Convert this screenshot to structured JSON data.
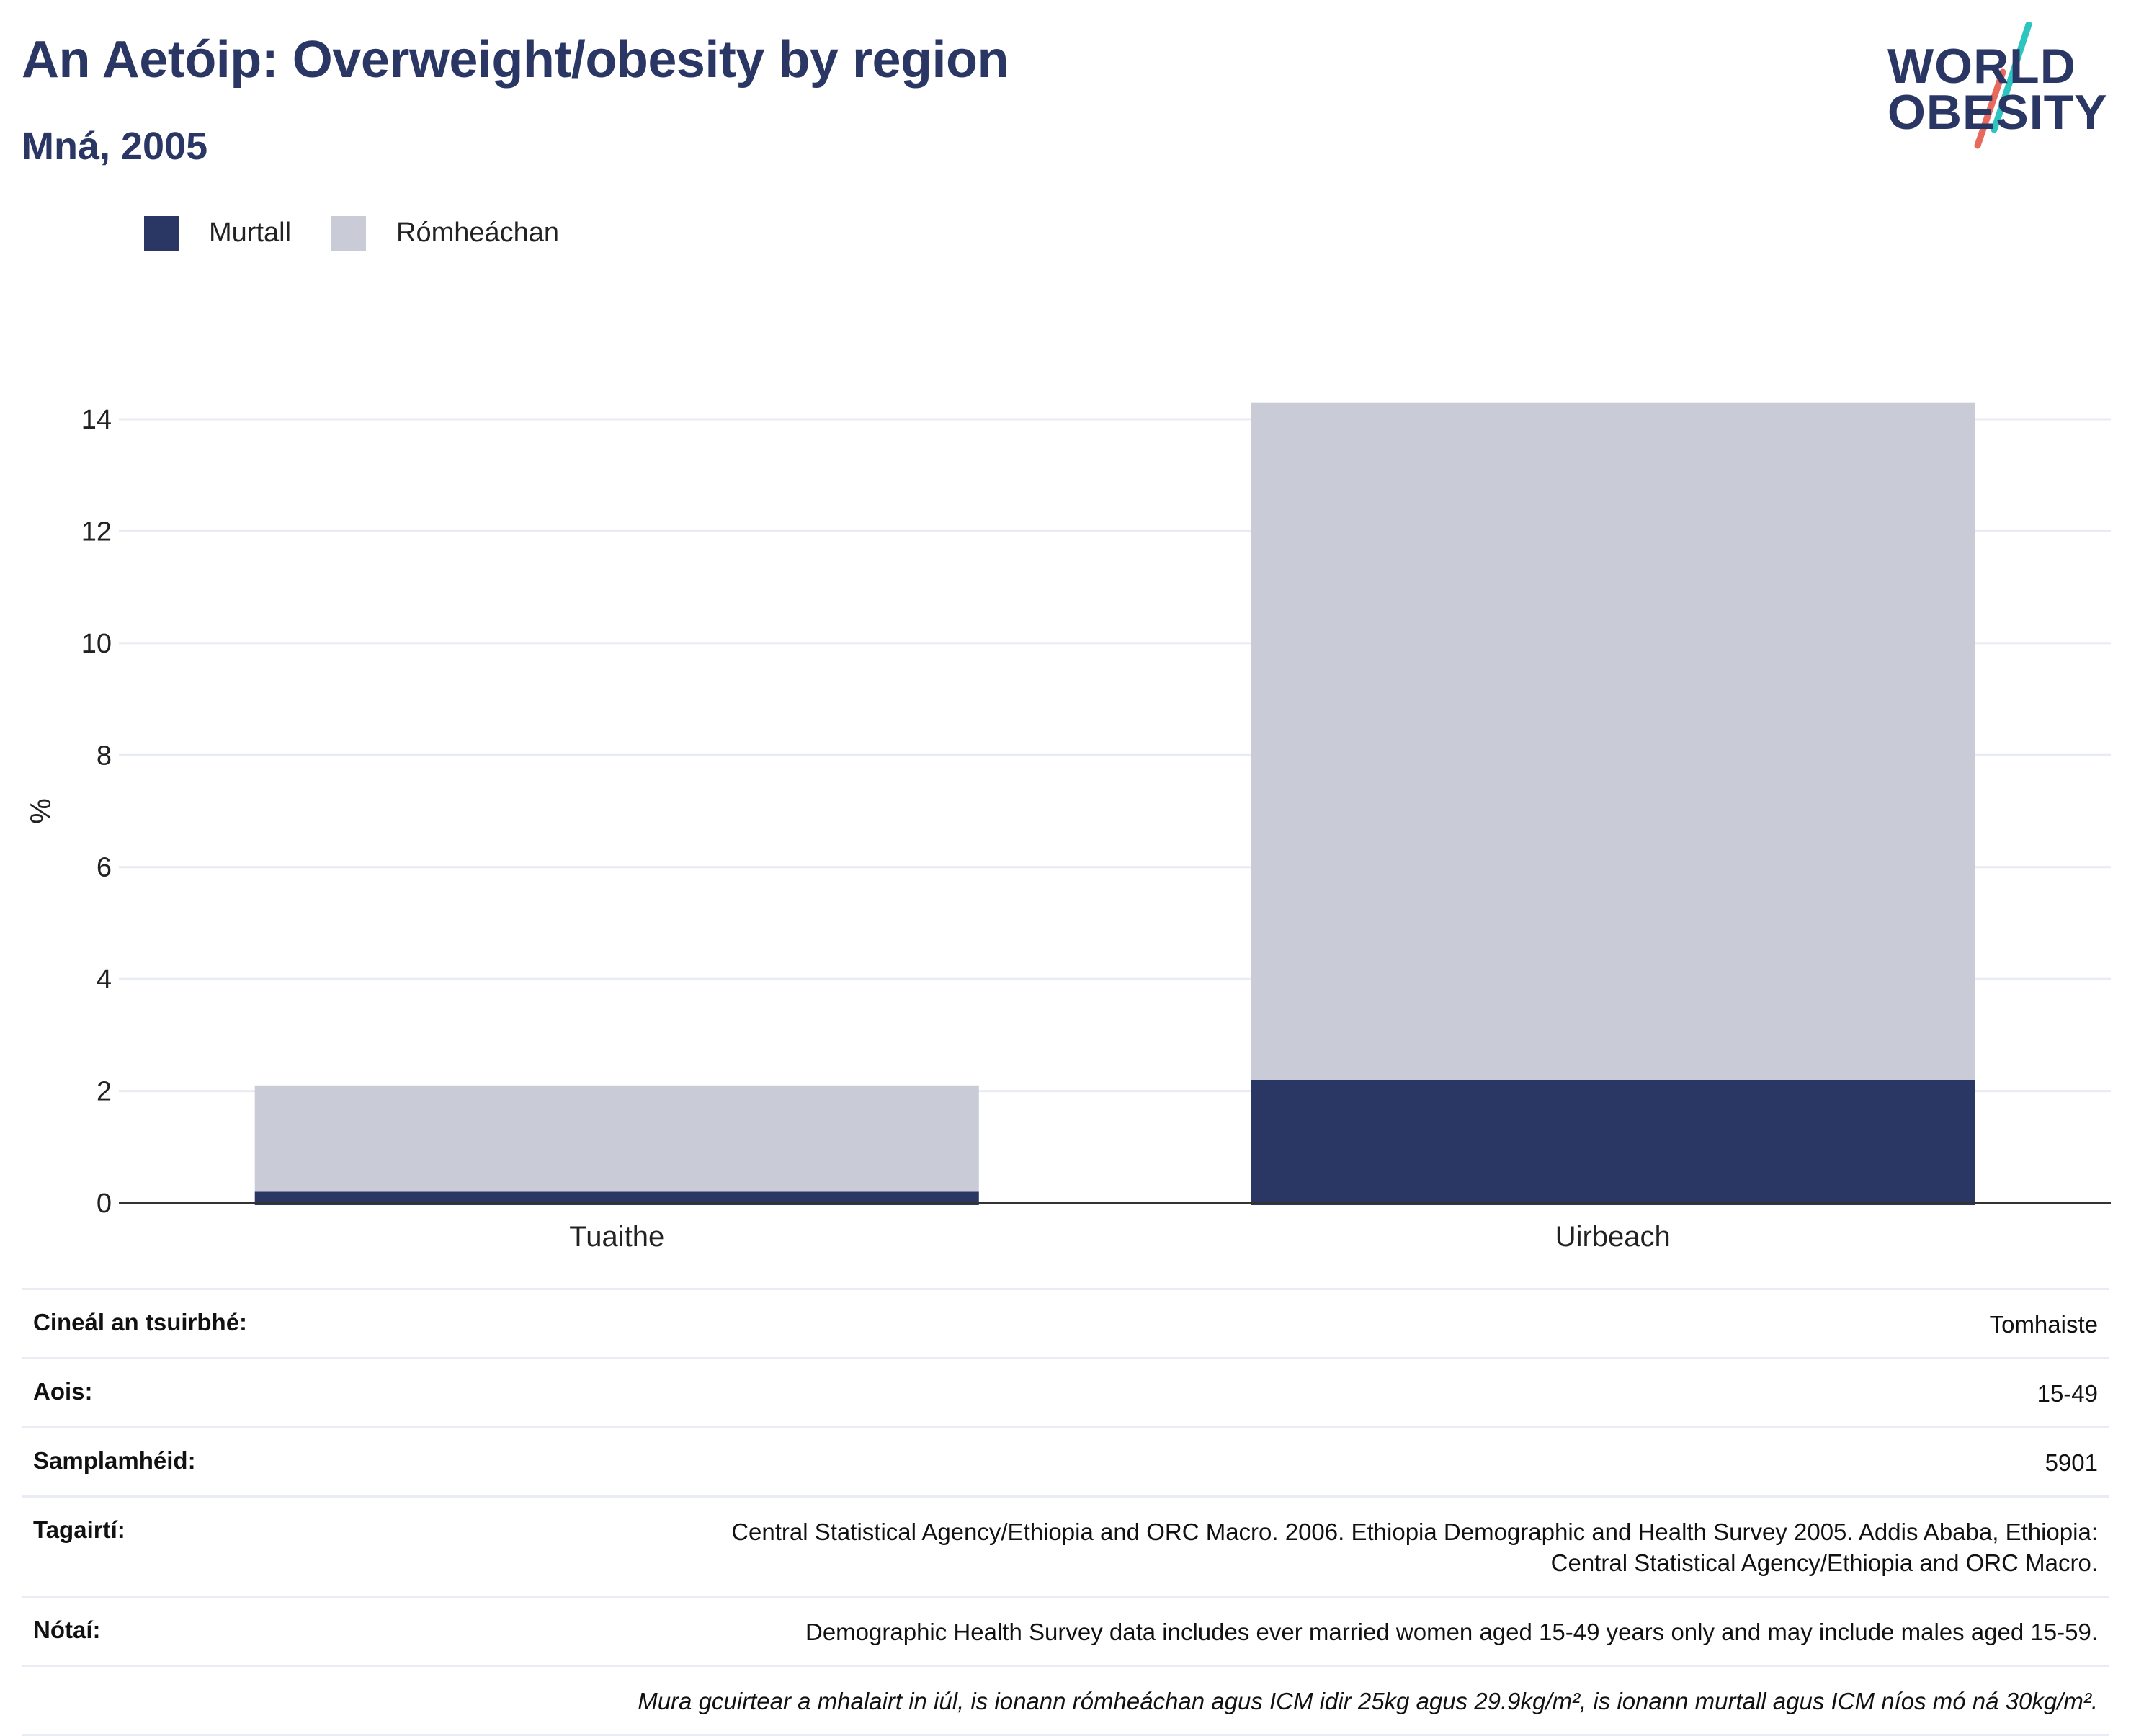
{
  "header": {
    "title": "An Aetóip: Overweight/obesity by region",
    "subtitle": "Mná, 2005"
  },
  "logo": {
    "line1": "WORLD",
    "line2": "OBESITY",
    "slash_colors": [
      "#2ec4c0",
      "#e86a5c"
    ]
  },
  "legend": [
    {
      "label": "Murtall",
      "color": "#2a3663"
    },
    {
      "label": "Rómheáchan",
      "color": "#c9ccd7"
    }
  ],
  "chart_data": {
    "type": "bar",
    "stacked": true,
    "categories": [
      "Tuaithe",
      "Uirbeach"
    ],
    "series": [
      {
        "name": "Murtall",
        "values": [
          0.2,
          2.2
        ],
        "color": "#2a3663"
      },
      {
        "name": "Rómheáchan",
        "values": [
          1.9,
          12.1
        ],
        "color": "#c9ccd7"
      }
    ],
    "xlabel": "",
    "ylabel": "%",
    "ylim": [
      0,
      14
    ],
    "yticks": [
      0,
      2,
      4,
      6,
      8,
      10,
      12,
      14
    ],
    "grid": true,
    "legend_position": "top-left"
  },
  "info": [
    {
      "label": "Cineál an tsuirbhé:",
      "value": "Tomhaiste"
    },
    {
      "label": "Aois:",
      "value": "15-49"
    },
    {
      "label": "Samplamhéid:",
      "value": "5901"
    },
    {
      "label": "Tagairtí:",
      "value": "Central Statistical Agency/Ethiopia and ORC Macro. 2006. Ethiopia Demographic and Health Survey 2005. Addis Ababa, Ethiopia:",
      "value2": "Central Statistical Agency/Ethiopia and ORC Macro."
    },
    {
      "label": "Nótaí:",
      "value": "Demographic Health Survey data includes ever married women aged 15-49 years only and may include males aged 15-59."
    },
    {
      "label": "",
      "value": "Mura gcuirtear a mhalairt in iúl, is ionann rómheáchan agus ICM idir 25kg agus 29.9kg/m², is ionann murtall agus ICM níos mó ná 30kg/m²."
    }
  ]
}
